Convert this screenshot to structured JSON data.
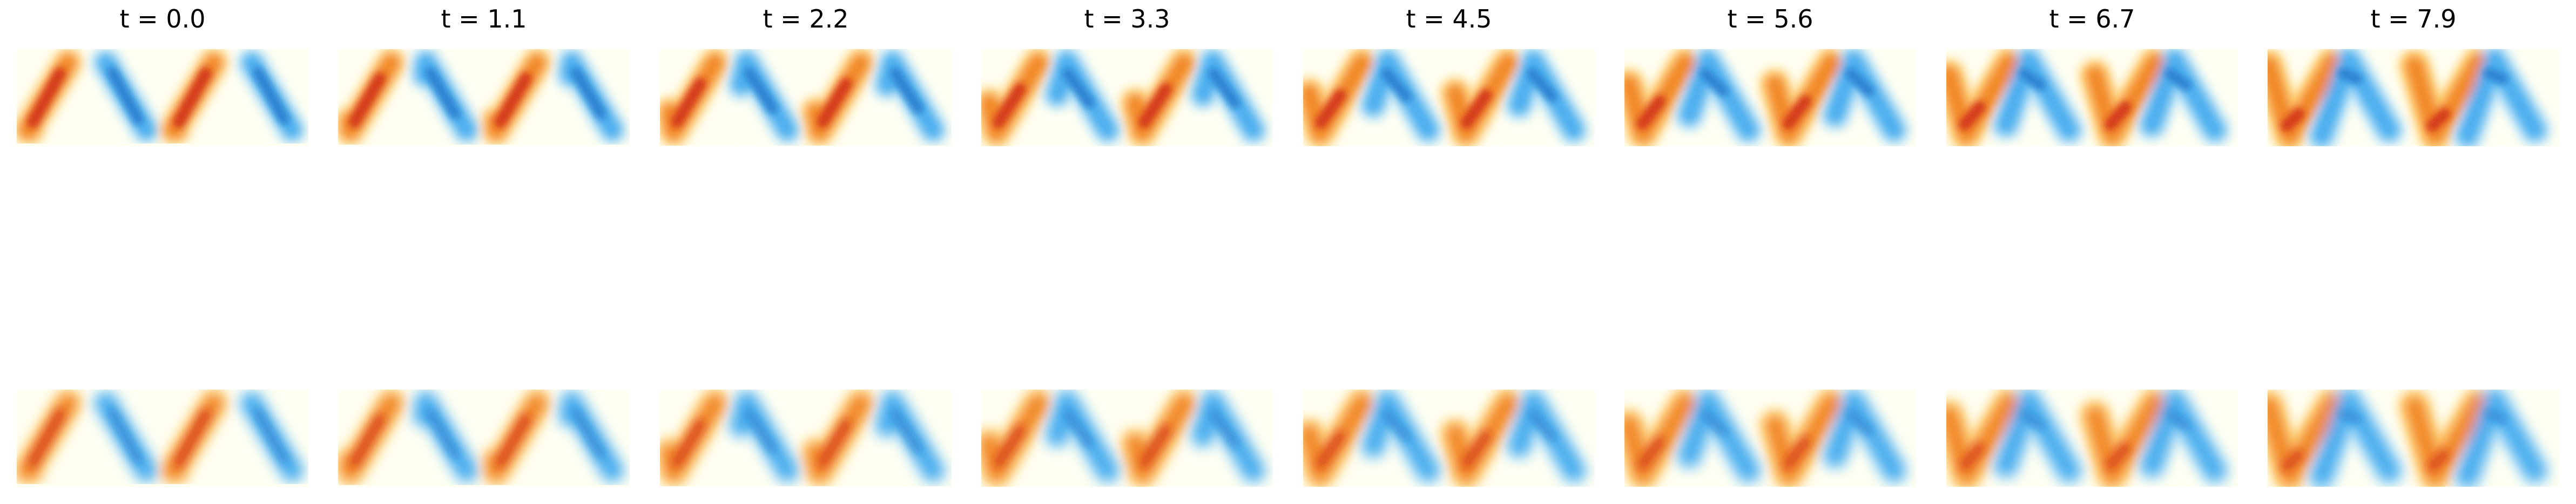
{
  "figure": {
    "snapshots": [
      {
        "label": "t = 0.0",
        "t": 0.0
      },
      {
        "label": "t = 1.1",
        "t": 1.1
      },
      {
        "label": "t = 2.2",
        "t": 2.2
      },
      {
        "label": "t = 3.3",
        "t": 3.3
      },
      {
        "label": "t = 4.5",
        "t": 4.5
      },
      {
        "label": "t = 5.6",
        "t": 5.6
      },
      {
        "label": "t = 6.7",
        "t": 6.7
      },
      {
        "label": "t = 7.9",
        "t": 7.9
      }
    ],
    "rows": [
      "top-row",
      "bottom-row"
    ],
    "colors": {
      "positive_strong": "#cc1a00",
      "positive_mid": "#f07a10",
      "positive_weak": "#ffd070",
      "negative_strong": "#0a6fc8",
      "negative_mid": "#35a4ec",
      "negative_weak": "#b8e2f8",
      "background": "#fffff0"
    }
  }
}
